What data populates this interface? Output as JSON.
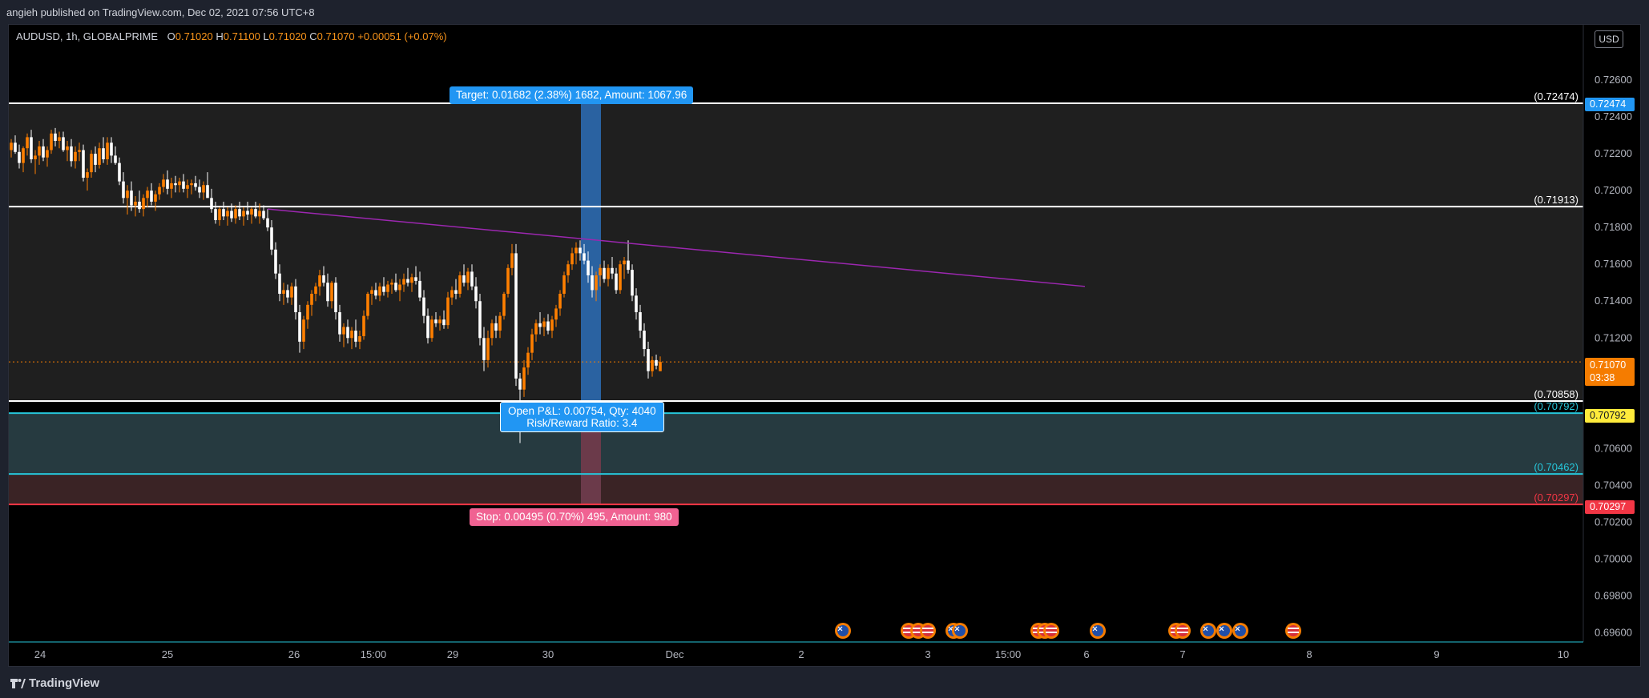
{
  "header": {
    "publish_text": "angieh published on TradingView.com, Dec 02, 2021 07:56 UTC+8"
  },
  "legend": {
    "symbol": "AUDUSD, 1h, GLOBALPRIME",
    "o_label": "O",
    "o_value": "0.71020",
    "h_label": "H",
    "h_value": "0.71100",
    "l_label": "L",
    "l_value": "0.71020",
    "c_label": "C",
    "c_value": "0.71070",
    "change": "+0.00051 (+0.07%)"
  },
  "currency": "USD",
  "notes": {
    "target": "Target: 0.01682 (2.38%) 1682, Amount: 1067.96",
    "stop": "Stop: 0.00495 (0.70%) 495, Amount: 980",
    "pnl_line1": "Open P&L: 0.00754, Qty: 4040",
    "pnl_line2": "Risk/Reward Ratio: 3.4"
  },
  "price_tags": {
    "live_price": "0.71070",
    "live_countdown": "03:38",
    "target": "0.72474",
    "zone": "0.70792",
    "stop": "0.70297"
  },
  "footer": {
    "brand": "TradingView"
  },
  "colors": {
    "background": "#000000",
    "bull_candle": "#ff7f00",
    "bear_candle": "#ffffff",
    "target_fill": "#2a62a1",
    "stop_fill": "#6b3a4a",
    "zone_fill": "#263a40",
    "trendline": "#9c27b0",
    "accent_blue": "#2196f3",
    "accent_red": "#f23645"
  },
  "chart_data": {
    "type": "candlestick",
    "symbol": "AUDUSD",
    "timeframe": "1h",
    "ylim": [
      0.6955,
      0.729
    ],
    "y_ticks": [
      "0.72600",
      "0.72400",
      "0.72200",
      "0.72000",
      "0.71800",
      "0.71600",
      "0.71400",
      "0.71200",
      "0.70600",
      "0.70400",
      "0.70200",
      "0.70000",
      "0.69800",
      "0.69600"
    ],
    "x_ticks": [
      "24",
      "25",
      "26",
      "15:00",
      "29",
      "30",
      "Dec",
      "2",
      "3",
      "15:00",
      "6",
      "7",
      "8",
      "9",
      "10"
    ],
    "horizontal_levels": [
      {
        "label": "(0.72474)",
        "value": 0.72474
      },
      {
        "label": "(0.71913)",
        "value": 0.71913
      },
      {
        "label": "(0.70858)",
        "value": 0.70858
      },
      {
        "label": "(0.70792)",
        "value": 0.70792
      },
      {
        "label": "(0.70462)",
        "value": 0.70462
      },
      {
        "label": "(0.70297)",
        "value": 0.70297
      }
    ],
    "current_price": 0.7107,
    "position": {
      "entry": 0.70792,
      "target": 0.72474,
      "stop": 0.70297
    },
    "trendline": {
      "from": {
        "bar": 64,
        "price": 0.719
      },
      "to": {
        "bar": 210,
        "price": 0.7148
      }
    },
    "candles": [
      [
        0.7222,
        0.7228,
        0.7218,
        0.7226
      ],
      [
        0.7226,
        0.723,
        0.722,
        0.7221
      ],
      [
        0.7221,
        0.7225,
        0.7212,
        0.7215
      ],
      [
        0.7215,
        0.7224,
        0.721,
        0.7223
      ],
      [
        0.7223,
        0.7231,
        0.7219,
        0.7229
      ],
      [
        0.7229,
        0.7233,
        0.7215,
        0.7217
      ],
      [
        0.7217,
        0.7222,
        0.7209,
        0.7219
      ],
      [
        0.7219,
        0.7227,
        0.7214,
        0.7224
      ],
      [
        0.7224,
        0.7228,
        0.7216,
        0.7218
      ],
      [
        0.7218,
        0.7224,
        0.7213,
        0.7222
      ],
      [
        0.7222,
        0.7233,
        0.722,
        0.7231
      ],
      [
        0.7231,
        0.7234,
        0.7224,
        0.7227
      ],
      [
        0.7227,
        0.7232,
        0.7223,
        0.7229
      ],
      [
        0.7229,
        0.7232,
        0.7221,
        0.7222
      ],
      [
        0.7222,
        0.7227,
        0.7216,
        0.7224
      ],
      [
        0.7224,
        0.7228,
        0.7213,
        0.7216
      ],
      [
        0.7216,
        0.7224,
        0.7212,
        0.7221
      ],
      [
        0.7221,
        0.7226,
        0.7216,
        0.7222
      ],
      [
        0.7222,
        0.7225,
        0.7205,
        0.7207
      ],
      [
        0.7207,
        0.7212,
        0.72,
        0.721
      ],
      [
        0.721,
        0.7222,
        0.7207,
        0.722
      ],
      [
        0.722,
        0.7224,
        0.721,
        0.7214
      ],
      [
        0.7214,
        0.7226,
        0.7212,
        0.7223
      ],
      [
        0.7223,
        0.7229,
        0.7215,
        0.7217
      ],
      [
        0.7217,
        0.7229,
        0.7214,
        0.7226
      ],
      [
        0.7226,
        0.7229,
        0.7215,
        0.7219
      ],
      [
        0.7219,
        0.7224,
        0.7214,
        0.7215
      ],
      [
        0.7215,
        0.7218,
        0.7203,
        0.7205
      ],
      [
        0.7205,
        0.721,
        0.7193,
        0.7196
      ],
      [
        0.7196,
        0.7203,
        0.7187,
        0.72
      ],
      [
        0.72,
        0.7205,
        0.7189,
        0.7192
      ],
      [
        0.7192,
        0.7197,
        0.7186,
        0.7194
      ],
      [
        0.7194,
        0.72,
        0.7188,
        0.719
      ],
      [
        0.719,
        0.7198,
        0.7186,
        0.7196
      ],
      [
        0.7196,
        0.7202,
        0.7191,
        0.72
      ],
      [
        0.72,
        0.7204,
        0.7192,
        0.7194
      ],
      [
        0.7194,
        0.72,
        0.7189,
        0.7198
      ],
      [
        0.7198,
        0.7204,
        0.7195,
        0.7202
      ],
      [
        0.7202,
        0.7209,
        0.7199,
        0.7206
      ],
      [
        0.7206,
        0.7211,
        0.7198,
        0.7201
      ],
      [
        0.7201,
        0.7207,
        0.7196,
        0.7204
      ],
      [
        0.7204,
        0.7208,
        0.7199,
        0.7203
      ],
      [
        0.7203,
        0.7207,
        0.7199,
        0.7205
      ],
      [
        0.7205,
        0.7209,
        0.7199,
        0.7201
      ],
      [
        0.7201,
        0.7206,
        0.7196,
        0.7203
      ],
      [
        0.7203,
        0.7206,
        0.7198,
        0.7204
      ],
      [
        0.7204,
        0.7208,
        0.72,
        0.7202
      ],
      [
        0.7202,
        0.7206,
        0.7196,
        0.7199
      ],
      [
        0.7199,
        0.7205,
        0.7195,
        0.7203
      ],
      [
        0.7203,
        0.721,
        0.7198,
        0.7196
      ],
      [
        0.7196,
        0.7201,
        0.7188,
        0.719
      ],
      [
        0.719,
        0.7194,
        0.7182,
        0.7184
      ],
      [
        0.7184,
        0.7191,
        0.7181,
        0.719
      ],
      [
        0.719,
        0.7194,
        0.7184,
        0.7186
      ],
      [
        0.7186,
        0.7191,
        0.7181,
        0.7189
      ],
      [
        0.7189,
        0.7193,
        0.7183,
        0.7185
      ],
      [
        0.7185,
        0.7192,
        0.7182,
        0.719
      ],
      [
        0.719,
        0.7194,
        0.7184,
        0.7186
      ],
      [
        0.7186,
        0.7191,
        0.7181,
        0.7189
      ],
      [
        0.7189,
        0.7194,
        0.7184,
        0.7187
      ],
      [
        0.7187,
        0.7191,
        0.7182,
        0.719
      ],
      [
        0.719,
        0.7194,
        0.7185,
        0.7186
      ],
      [
        0.7186,
        0.7193,
        0.7182,
        0.7189
      ],
      [
        0.7189,
        0.7192,
        0.7184,
        0.7185
      ],
      [
        0.7185,
        0.719,
        0.7178,
        0.718
      ],
      [
        0.718,
        0.7184,
        0.7165,
        0.7168
      ],
      [
        0.7168,
        0.7172,
        0.7152,
        0.7155
      ],
      [
        0.7155,
        0.716,
        0.714,
        0.7144
      ],
      [
        0.7144,
        0.715,
        0.7138,
        0.7146
      ],
      [
        0.7146,
        0.7149,
        0.7139,
        0.7142
      ],
      [
        0.7142,
        0.715,
        0.7138,
        0.7148
      ],
      [
        0.7148,
        0.7152,
        0.713,
        0.7134
      ],
      [
        0.7134,
        0.7138,
        0.7112,
        0.7118
      ],
      [
        0.7118,
        0.7132,
        0.7114,
        0.713
      ],
      [
        0.713,
        0.714,
        0.7125,
        0.7138
      ],
      [
        0.7138,
        0.7146,
        0.7132,
        0.7144
      ],
      [
        0.7144,
        0.715,
        0.714,
        0.7148
      ],
      [
        0.7148,
        0.7157,
        0.7143,
        0.7154
      ],
      [
        0.7154,
        0.7159,
        0.7148,
        0.715
      ],
      [
        0.715,
        0.7155,
        0.7137,
        0.714
      ],
      [
        0.714,
        0.7151,
        0.7136,
        0.715
      ],
      [
        0.715,
        0.7153,
        0.713,
        0.7134
      ],
      [
        0.7134,
        0.7138,
        0.7118,
        0.7122
      ],
      [
        0.7122,
        0.7128,
        0.7115,
        0.7126
      ],
      [
        0.7126,
        0.713,
        0.7117,
        0.712
      ],
      [
        0.712,
        0.7126,
        0.7114,
        0.7124
      ],
      [
        0.7124,
        0.713,
        0.7115,
        0.7118
      ],
      [
        0.7118,
        0.7124,
        0.7114,
        0.7121
      ],
      [
        0.7121,
        0.7135,
        0.7119,
        0.7132
      ],
      [
        0.7132,
        0.7145,
        0.713,
        0.7144
      ],
      [
        0.7144,
        0.7148,
        0.7138,
        0.7146
      ],
      [
        0.7146,
        0.715,
        0.7141,
        0.7143
      ],
      [
        0.7143,
        0.715,
        0.714,
        0.7148
      ],
      [
        0.7148,
        0.7153,
        0.7143,
        0.7145
      ],
      [
        0.7145,
        0.7151,
        0.7142,
        0.7149
      ],
      [
        0.7149,
        0.7152,
        0.7144,
        0.715
      ],
      [
        0.715,
        0.7155,
        0.7145,
        0.7146
      ],
      [
        0.7146,
        0.7152,
        0.714,
        0.7149
      ],
      [
        0.7149,
        0.7155,
        0.7145,
        0.7152
      ],
      [
        0.7152,
        0.7158,
        0.7148,
        0.715
      ],
      [
        0.715,
        0.7155,
        0.7145,
        0.7153
      ],
      [
        0.7153,
        0.7159,
        0.7149,
        0.7151
      ],
      [
        0.7151,
        0.7156,
        0.714,
        0.7142
      ],
      [
        0.7142,
        0.7146,
        0.7128,
        0.7132
      ],
      [
        0.7132,
        0.7136,
        0.7117,
        0.712
      ],
      [
        0.712,
        0.7132,
        0.7118,
        0.713
      ],
      [
        0.713,
        0.7134,
        0.7126,
        0.7128
      ],
      [
        0.7128,
        0.7132,
        0.7124,
        0.713
      ],
      [
        0.713,
        0.7135,
        0.7125,
        0.7127
      ],
      [
        0.7127,
        0.7145,
        0.7125,
        0.7142
      ],
      [
        0.7142,
        0.7148,
        0.7138,
        0.7146
      ],
      [
        0.7146,
        0.7152,
        0.7141,
        0.7144
      ],
      [
        0.7144,
        0.7156,
        0.7142,
        0.7154
      ],
      [
        0.7154,
        0.716,
        0.7148,
        0.715
      ],
      [
        0.715,
        0.7158,
        0.7146,
        0.7156
      ],
      [
        0.7156,
        0.716,
        0.7146,
        0.7148
      ],
      [
        0.7148,
        0.7153,
        0.7136,
        0.714
      ],
      [
        0.714,
        0.7144,
        0.7116,
        0.712
      ],
      [
        0.712,
        0.7126,
        0.7102,
        0.7108
      ],
      [
        0.7108,
        0.7124,
        0.7104,
        0.712
      ],
      [
        0.712,
        0.713,
        0.7116,
        0.7128
      ],
      [
        0.7128,
        0.7132,
        0.712,
        0.7124
      ],
      [
        0.7124,
        0.7134,
        0.712,
        0.7132
      ],
      [
        0.7132,
        0.7145,
        0.713,
        0.7144
      ],
      [
        0.7144,
        0.716,
        0.7142,
        0.7158
      ],
      [
        0.7158,
        0.7171,
        0.7154,
        0.7166
      ],
      [
        0.7166,
        0.7171,
        0.7094,
        0.7098
      ],
      [
        0.7098,
        0.7101,
        0.7063,
        0.7092
      ],
      [
        0.7092,
        0.7108,
        0.7088,
        0.7104
      ],
      [
        0.7104,
        0.7115,
        0.71,
        0.7112
      ],
      [
        0.7112,
        0.7125,
        0.7108,
        0.7122
      ],
      [
        0.7122,
        0.713,
        0.7118,
        0.7128
      ],
      [
        0.7128,
        0.7134,
        0.7122,
        0.7126
      ],
      [
        0.7126,
        0.7131,
        0.7121,
        0.7129
      ],
      [
        0.7129,
        0.7133,
        0.7122,
        0.7124
      ],
      [
        0.7124,
        0.7132,
        0.712,
        0.713
      ],
      [
        0.713,
        0.7138,
        0.7126,
        0.7136
      ],
      [
        0.7136,
        0.7146,
        0.7132,
        0.7144
      ],
      [
        0.7144,
        0.7156,
        0.7142,
        0.7154
      ],
      [
        0.7154,
        0.7162,
        0.715,
        0.716
      ],
      [
        0.716,
        0.7169,
        0.7157,
        0.7166
      ],
      [
        0.7166,
        0.7172,
        0.716,
        0.7169
      ],
      [
        0.7169,
        0.7173,
        0.7162,
        0.7166
      ],
      [
        0.7166,
        0.7171,
        0.716,
        0.7162
      ],
      [
        0.7162,
        0.7167,
        0.715,
        0.7154
      ],
      [
        0.7154,
        0.7159,
        0.7142,
        0.7146
      ],
      [
        0.7146,
        0.7156,
        0.714,
        0.7154
      ],
      [
        0.7154,
        0.716,
        0.7148,
        0.7158
      ],
      [
        0.7158,
        0.7162,
        0.715,
        0.7152
      ],
      [
        0.7152,
        0.716,
        0.7148,
        0.7158
      ],
      [
        0.7158,
        0.7164,
        0.7152,
        0.7155
      ],
      [
        0.7155,
        0.7158,
        0.7144,
        0.7146
      ],
      [
        0.7146,
        0.7162,
        0.7144,
        0.716
      ],
      [
        0.716,
        0.7164,
        0.7152,
        0.7162
      ],
      [
        0.7162,
        0.7173,
        0.7155,
        0.7157
      ],
      [
        0.7157,
        0.716,
        0.714,
        0.7143
      ],
      [
        0.7143,
        0.7147,
        0.713,
        0.7134
      ],
      [
        0.7134,
        0.7138,
        0.712,
        0.7124
      ],
      [
        0.7124,
        0.7128,
        0.711,
        0.7114
      ],
      [
        0.7114,
        0.7118,
        0.7098,
        0.7102
      ],
      [
        0.7102,
        0.711,
        0.7099,
        0.7108
      ],
      [
        0.7108,
        0.7111,
        0.7103,
        0.7105
      ],
      [
        0.7102,
        0.711,
        0.7102,
        0.7107
      ]
    ]
  }
}
